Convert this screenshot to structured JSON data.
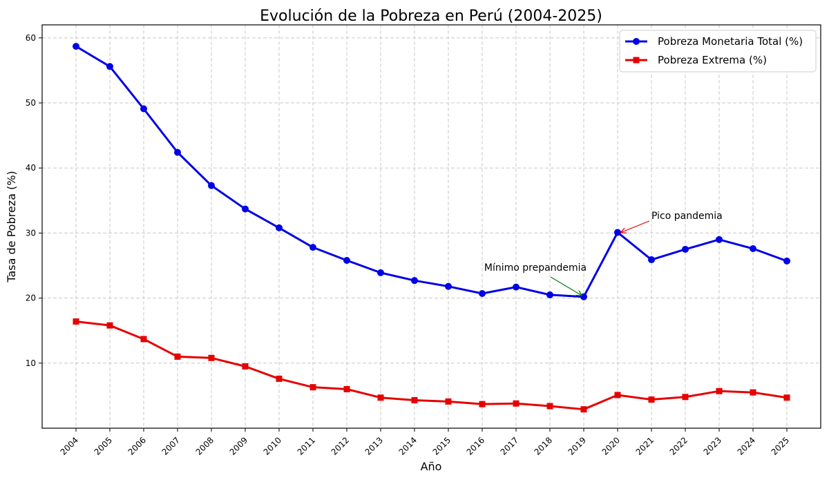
{
  "chart_data": {
    "type": "line",
    "title": "Evolución de la Pobreza en Perú (2004-2025)",
    "xlabel": "Año",
    "ylabel": "Tasa de Pobreza (%)",
    "categories": [
      "2004",
      "2005",
      "2006",
      "2007",
      "2008",
      "2009",
      "2010",
      "2011",
      "2012",
      "2013",
      "2014",
      "2015",
      "2016",
      "2017",
      "2018",
      "2019",
      "2020",
      "2021",
      "2022",
      "2023",
      "2024",
      "2025"
    ],
    "ylim": [
      0,
      62
    ],
    "yticks": [
      10,
      20,
      30,
      40,
      50,
      60
    ],
    "grid": true,
    "legend_position": "top-right",
    "series": [
      {
        "name": "Pobreza Monetaria Total (%)",
        "color": "#0000e6",
        "marker": "circle",
        "values": [
          58.7,
          55.6,
          49.1,
          42.4,
          37.3,
          33.7,
          30.8,
          27.8,
          25.8,
          23.9,
          22.7,
          21.8,
          20.7,
          21.7,
          20.5,
          20.2,
          30.1,
          25.9,
          27.5,
          29.0,
          27.6,
          25.7
        ]
      },
      {
        "name": "Pobreza Extrema (%)",
        "color": "#e60000",
        "marker": "square",
        "values": [
          16.4,
          15.8,
          13.7,
          11.0,
          10.8,
          9.5,
          7.6,
          6.3,
          6.0,
          4.7,
          4.3,
          4.1,
          3.7,
          3.8,
          3.4,
          2.9,
          5.1,
          4.4,
          4.8,
          5.7,
          5.5,
          4.7
        ]
      }
    ],
    "annotations": [
      {
        "text": "Pico pandemia",
        "target_category": "2020",
        "target_value": 30.1,
        "arrow_color": "#e60000"
      },
      {
        "text": "Mínimo prepandemia",
        "target_category": "2019",
        "target_value": 20.2,
        "arrow_color": "#008000"
      }
    ]
  }
}
